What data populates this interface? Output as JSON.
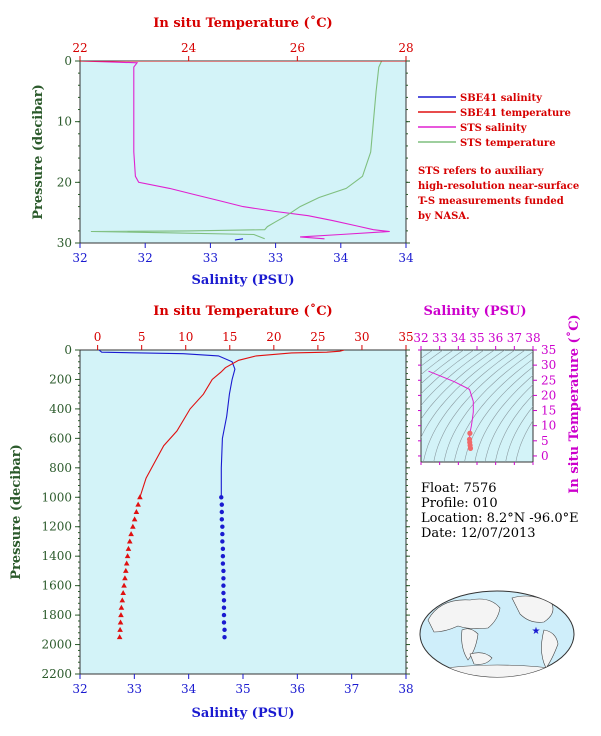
{
  "colors": {
    "salinity": "#1a1ad0",
    "temperature": "#e01010",
    "sts_salinity": "#e020d0",
    "sts_temperature": "#7fbf7f",
    "panel_bg": "#d3f3f8",
    "axis_red": "#d60000",
    "axis_blue": "#1a1ad0",
    "axis_green": "#2b5a2b",
    "axis_magenta": "#cc00cc"
  },
  "legend": {
    "entries": [
      {
        "label": "SBE41 salinity",
        "color": "#1a1ad0"
      },
      {
        "label": "SBE41 temperature",
        "color": "#e01010"
      },
      {
        "label": "STS salinity",
        "color": "#e020d0"
      },
      {
        "label": "STS temperature",
        "color": "#7fbf7f"
      }
    ],
    "note_lines": [
      "STS refers to auxiliary",
      "high-resolution near-surface",
      "T-S measurements funded",
      "by NASA."
    ]
  },
  "info": {
    "float": "Float:  7576",
    "profile": "Profile:  010",
    "location": "Location:  8.2°N  -96.0°E",
    "date": "Date:  12/07/2013"
  },
  "chart_data": [
    {
      "id": "near-surface",
      "type": "line",
      "title": "",
      "top_axis_label": "In situ Temperature (˚C)",
      "bottom_axis_label": "Salinity (PSU)",
      "y_axis_label": "Pressure (decibar)",
      "temp_range": [
        22,
        28
      ],
      "temp_ticks": [
        22,
        24,
        26,
        28
      ],
      "sal_range": [
        32,
        34
      ],
      "sal_ticks": [
        "32",
        "32",
        "33",
        "33",
        "34",
        "34"
      ],
      "sal_tick_values": [
        32.0,
        32.4,
        32.8,
        33.2,
        33.6,
        34.0
      ],
      "pressure_range": [
        0,
        30
      ],
      "pressure_ticks": [
        0,
        10,
        20,
        30
      ],
      "series": [
        {
          "name": "STS salinity",
          "color": "#e020d0",
          "axis": "salinity",
          "points": [
            [
              32.0,
              0.0
            ],
            [
              32.35,
              0.3
            ],
            [
              32.33,
              1
            ],
            [
              32.33,
              5
            ],
            [
              32.33,
              10
            ],
            [
              32.33,
              15
            ],
            [
              32.34,
              19
            ],
            [
              32.36,
              20
            ],
            [
              32.55,
              21
            ],
            [
              32.7,
              22
            ],
            [
              32.85,
              23
            ],
            [
              33.0,
              24
            ],
            [
              33.2,
              24.8
            ],
            [
              33.4,
              25.5
            ],
            [
              33.55,
              26.3
            ],
            [
              33.7,
              27.2
            ],
            [
              33.8,
              27.8
            ],
            [
              33.9,
              28.1
            ],
            [
              33.6,
              28.6
            ],
            [
              33.35,
              29
            ],
            [
              33.5,
              29.3
            ]
          ]
        },
        {
          "name": "STS temperature",
          "color": "#7fbf7f",
          "axis": "temperature",
          "points": [
            [
              27.55,
              0.0
            ],
            [
              27.5,
              1
            ],
            [
              27.45,
              5
            ],
            [
              27.4,
              10
            ],
            [
              27.35,
              15
            ],
            [
              27.2,
              19
            ],
            [
              26.9,
              21
            ],
            [
              26.4,
              22.5
            ],
            [
              26.05,
              24
            ],
            [
              25.8,
              25.5
            ],
            [
              25.6,
              26.5
            ],
            [
              25.45,
              27.3
            ],
            [
              25.4,
              27.8
            ],
            [
              24.0,
              28.0
            ],
            [
              22.2,
              28.1
            ],
            [
              23.5,
              28.3
            ],
            [
              25.2,
              28.6
            ],
            [
              25.4,
              29.3
            ]
          ]
        },
        {
          "name": "SBE41 salinity",
          "color": "#1a1ad0",
          "axis": "salinity",
          "points": [
            [
              32.95,
              29.5
            ],
            [
              33.0,
              29.3
            ]
          ]
        },
        {
          "name": "SBE41 temperature",
          "color": "#e01010",
          "axis": "temperature",
          "points": [
            [
              22.0,
              0.0
            ],
            [
              28.0,
              0.0
            ]
          ]
        }
      ]
    },
    {
      "id": "full-profile",
      "type": "line",
      "title": "",
      "top_axis_label": "In situ Temperature (˚C)",
      "bottom_axis_label": "Salinity (PSU)",
      "y_axis_label": "Pressure (decibar)",
      "temp_range": [
        -2,
        35
      ],
      "temp_ticks": [
        0,
        5,
        10,
        15,
        20,
        25,
        30,
        35
      ],
      "sal_range": [
        32,
        38
      ],
      "sal_ticks": [
        32,
        33,
        34,
        35,
        36,
        37,
        38
      ],
      "pressure_range": [
        0,
        2200
      ],
      "pressure_ticks": [
        0,
        200,
        400,
        600,
        800,
        1000,
        1200,
        1400,
        1600,
        1800,
        2000,
        2200
      ],
      "series": [
        {
          "name": "SBE41 salinity",
          "color": "#1a1ad0",
          "axis": "salinity",
          "points": [
            [
              32.35,
              0
            ],
            [
              32.4,
              15
            ],
            [
              33.9,
              25
            ],
            [
              34.55,
              40
            ],
            [
              34.8,
              80
            ],
            [
              34.85,
              130
            ],
            [
              34.8,
              200
            ],
            [
              34.75,
              300
            ],
            [
              34.7,
              450
            ],
            [
              34.62,
              600
            ],
            [
              34.6,
              800
            ],
            [
              34.6,
              1000
            ]
          ],
          "markers": [
            [
              34.6,
              1000
            ],
            [
              34.61,
              1050
            ],
            [
              34.61,
              1100
            ],
            [
              34.61,
              1150
            ],
            [
              34.62,
              1200
            ],
            [
              34.62,
              1250
            ],
            [
              34.62,
              1300
            ],
            [
              34.63,
              1350
            ],
            [
              34.63,
              1400
            ],
            [
              34.63,
              1450
            ],
            [
              34.64,
              1500
            ],
            [
              34.64,
              1550
            ],
            [
              34.64,
              1600
            ],
            [
              34.64,
              1650
            ],
            [
              34.65,
              1700
            ],
            [
              34.65,
              1750
            ],
            [
              34.65,
              1800
            ],
            [
              34.65,
              1850
            ],
            [
              34.66,
              1900
            ],
            [
              34.66,
              1950
            ]
          ]
        },
        {
          "name": "SBE41 temperature",
          "color": "#e01010",
          "axis": "temperature",
          "points": [
            [
              28.0,
              0
            ],
            [
              27.5,
              8
            ],
            [
              26.0,
              15
            ],
            [
              22.0,
              20
            ],
            [
              18.0,
              40
            ],
            [
              16.0,
              70
            ],
            [
              14.5,
              120
            ],
            [
              14.0,
              150
            ],
            [
              13.0,
              200
            ],
            [
              12.0,
              300
            ],
            [
              10.5,
              400
            ],
            [
              9.0,
              550
            ],
            [
              7.5,
              650
            ],
            [
              6.5,
              760
            ],
            [
              5.5,
              870
            ],
            [
              4.8,
              1000
            ]
          ],
          "markers": [
            [
              4.8,
              1000
            ],
            [
              4.6,
              1050
            ],
            [
              4.4,
              1100
            ],
            [
              4.2,
              1150
            ],
            [
              4.0,
              1200
            ],
            [
              3.8,
              1250
            ],
            [
              3.65,
              1300
            ],
            [
              3.5,
              1350
            ],
            [
              3.4,
              1400
            ],
            [
              3.3,
              1450
            ],
            [
              3.2,
              1500
            ],
            [
              3.1,
              1550
            ],
            [
              3.0,
              1600
            ],
            [
              2.9,
              1650
            ],
            [
              2.8,
              1700
            ],
            [
              2.7,
              1750
            ],
            [
              2.65,
              1800
            ],
            [
              2.6,
              1850
            ],
            [
              2.55,
              1900
            ],
            [
              2.5,
              1950
            ]
          ]
        }
      ]
    },
    {
      "id": "ts-diagram",
      "type": "scatter",
      "title": "",
      "top_axis_label": "Salinity (PSU)",
      "right_axis_label": "In situ Temperature (˚C)",
      "sal_range": [
        32,
        38
      ],
      "sal_ticks": [
        32,
        33,
        34,
        35,
        36,
        37,
        38
      ],
      "temp_range": [
        -2,
        35
      ],
      "temp_ticks": [
        0,
        5,
        10,
        15,
        20,
        25,
        30,
        35
      ],
      "series": [
        {
          "name": "T-S curve",
          "color": "#e020d0",
          "points": [
            [
              32.4,
              28.0
            ],
            [
              33.0,
              26.5
            ],
            [
              33.8,
              24.5
            ],
            [
              34.6,
              22.0
            ],
            [
              34.8,
              18.0
            ],
            [
              34.8,
              14.5
            ],
            [
              34.75,
              12.0
            ],
            [
              34.7,
              10.0
            ],
            [
              34.62,
              7.5
            ],
            [
              34.6,
              5.5
            ],
            [
              34.61,
              4.5
            ],
            [
              34.63,
              3.5
            ],
            [
              34.65,
              2.5
            ]
          ]
        }
      ]
    }
  ]
}
